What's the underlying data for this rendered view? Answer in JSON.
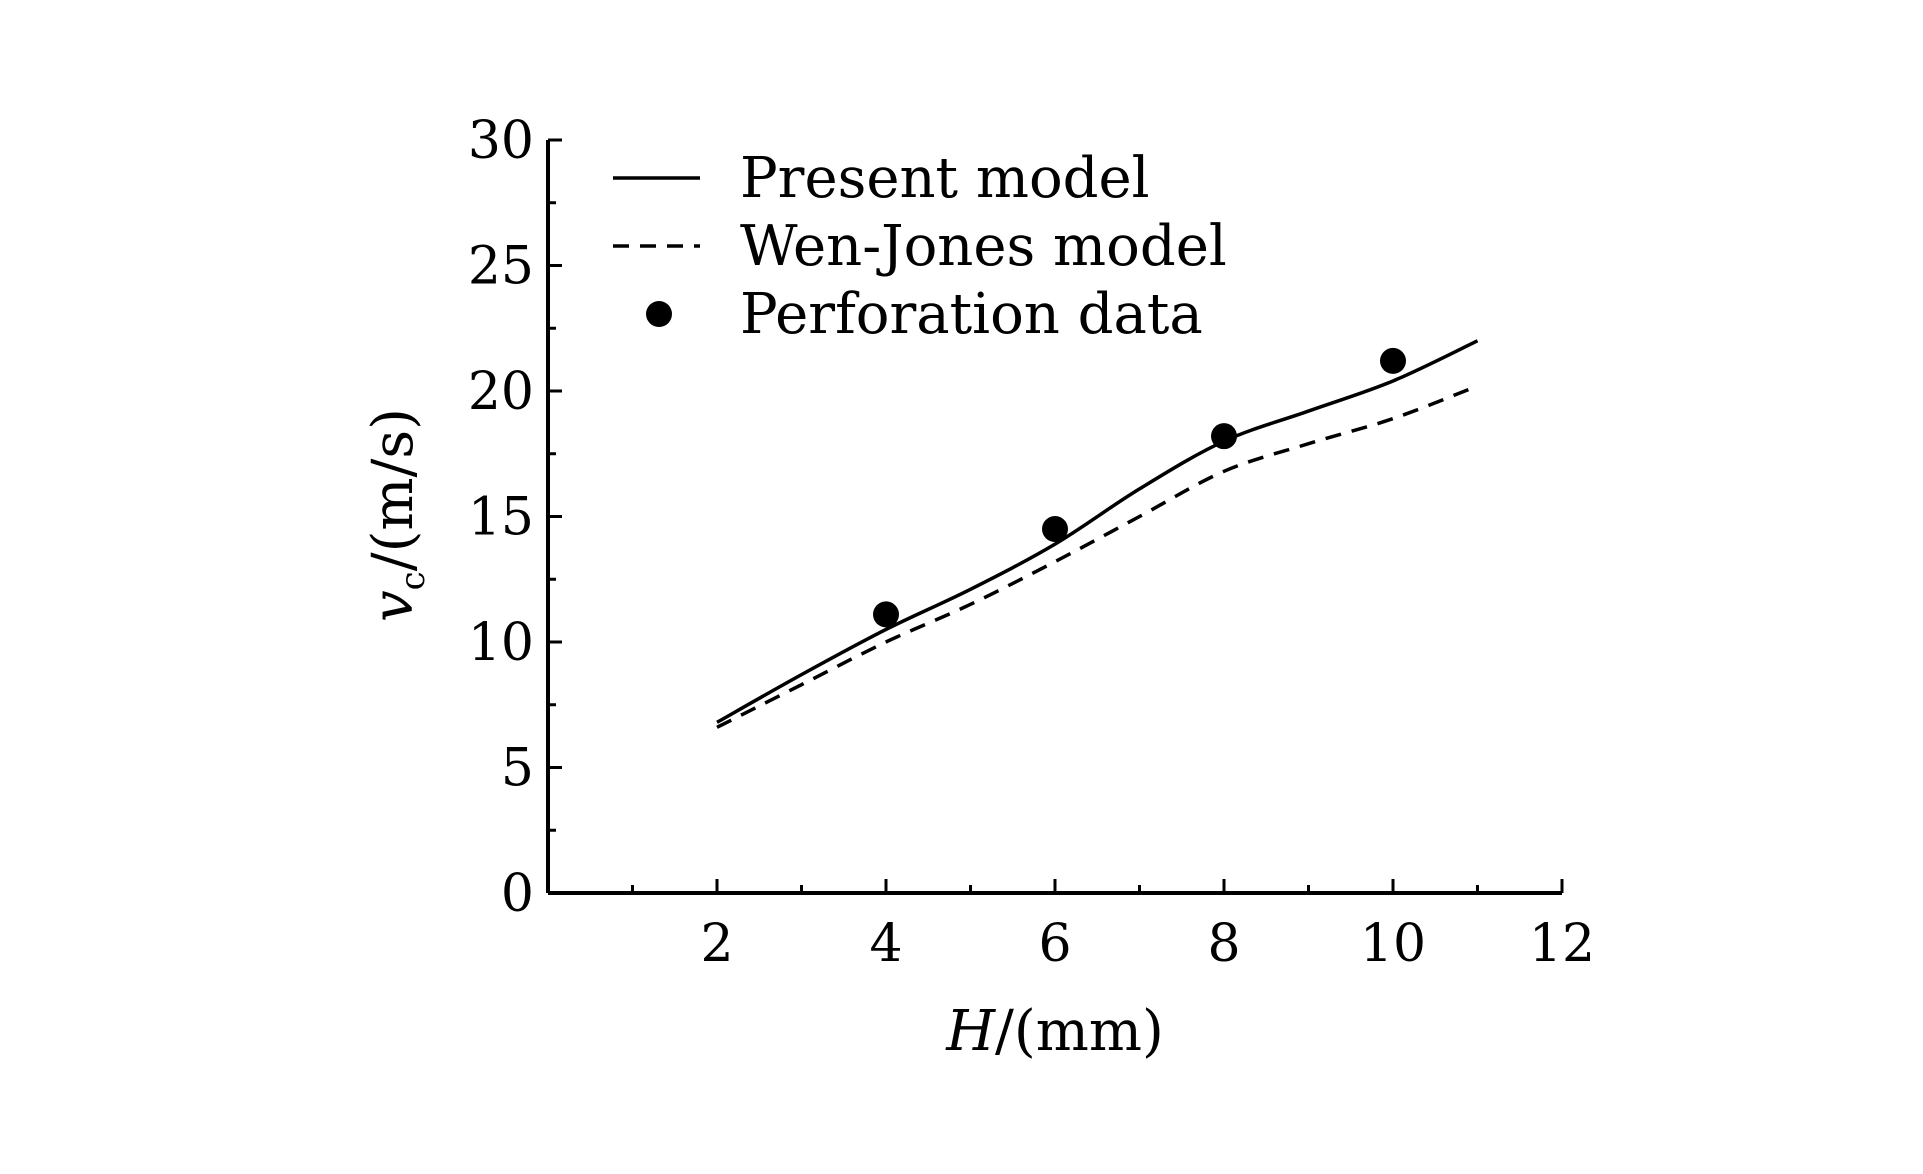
{
  "chart_data": {
    "type": "line",
    "xlabel_var": "H",
    "xlabel_unit": "/(mm)",
    "ylabel_var": "v",
    "ylabel_sub": "c",
    "ylabel_unit": "/(m/s)",
    "xlim": [
      0,
      12
    ],
    "ylim": [
      0,
      30
    ],
    "xticks": [
      2,
      4,
      6,
      8,
      10,
      12
    ],
    "yticks": [
      0,
      5,
      10,
      15,
      20,
      25,
      30
    ],
    "grid": false,
    "legend_position": "top-left",
    "series": [
      {
        "name": "Present model",
        "style": "solid",
        "x": [
          2,
          3,
          4,
          5,
          6,
          7,
          8,
          9,
          10,
          11
        ],
        "y": [
          6.8,
          8.7,
          10.5,
          12.1,
          13.9,
          16.1,
          18.0,
          19.2,
          20.4,
          22.0
        ]
      },
      {
        "name": "Wen-Jones model",
        "style": "dashed",
        "x": [
          2,
          3,
          4,
          5,
          6,
          7,
          8,
          9,
          10,
          11
        ],
        "y": [
          6.6,
          8.3,
          10.0,
          11.5,
          13.2,
          15.0,
          16.8,
          17.9,
          18.9,
          20.2
        ]
      },
      {
        "name": "Perforation data",
        "style": "marker",
        "x": [
          4,
          6,
          8,
          10
        ],
        "y": [
          11.1,
          14.5,
          18.2,
          21.2
        ]
      }
    ]
  }
}
